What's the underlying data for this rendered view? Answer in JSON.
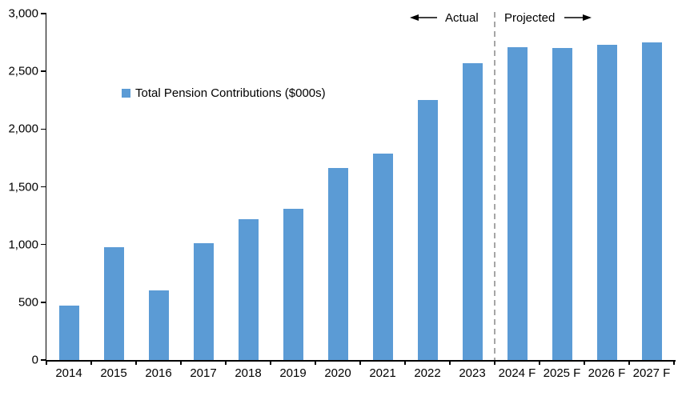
{
  "chart_data": {
    "type": "bar",
    "title": "",
    "legend": "Total Pension Contributions ($000s)",
    "categories": [
      "2014",
      "2015",
      "2016",
      "2017",
      "2018",
      "2019",
      "2020",
      "2021",
      "2022",
      "2023",
      "2024 F",
      "2025 F",
      "2026 F",
      "2027 F"
    ],
    "values": [
      470,
      980,
      605,
      1010,
      1220,
      1310,
      1660,
      1790,
      2250,
      2570,
      2710,
      2700,
      2730,
      2750
    ],
    "xlabel": "",
    "ylabel": "",
    "ylim": [
      0,
      3000
    ],
    "ytick_step": 500,
    "ytick_labels": [
      "0",
      "500",
      "1,000",
      "1,500",
      "2,000",
      "2,500",
      "3,000"
    ],
    "grid": false,
    "legend_position": "inside-upper-left",
    "bar_color": "#5B9BD5",
    "divider_color": "#A6A6A6",
    "axis_color": "#000000",
    "annotations": {
      "actual_label": "Actual",
      "projected_label": "Projected",
      "divider_after_category": "2023"
    }
  }
}
